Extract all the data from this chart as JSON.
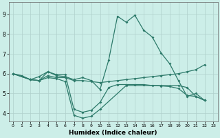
{
  "xlabel": "Humidex (Indice chaleur)",
  "background_color": "#cceee8",
  "grid_color": "#b0d0cc",
  "line_color": "#2d7a6a",
  "xlim": [
    -0.5,
    23.5
  ],
  "ylim": [
    3.6,
    9.6
  ],
  "yticks": [
    4,
    5,
    6,
    7,
    8,
    9
  ],
  "xticks": [
    0,
    1,
    2,
    3,
    4,
    5,
    6,
    7,
    8,
    9,
    10,
    11,
    12,
    13,
    14,
    15,
    16,
    17,
    18,
    19,
    20,
    21,
    22,
    23
  ],
  "series1": [
    [
      0,
      6.0
    ],
    [
      1,
      5.9
    ],
    [
      2,
      5.7
    ],
    [
      3,
      5.85
    ],
    [
      4,
      6.1
    ],
    [
      5,
      5.9
    ],
    [
      6,
      5.85
    ],
    [
      7,
      5.7
    ],
    [
      8,
      5.8
    ],
    [
      9,
      5.65
    ],
    [
      10,
      5.2
    ],
    [
      11,
      6.7
    ],
    [
      12,
      8.9
    ],
    [
      13,
      8.6
    ],
    [
      14,
      8.95
    ],
    [
      15,
      8.2
    ],
    [
      16,
      7.85
    ],
    [
      17,
      7.05
    ],
    [
      18,
      6.5
    ],
    [
      19,
      5.65
    ],
    [
      20,
      4.85
    ],
    [
      21,
      5.0
    ],
    [
      22,
      4.65
    ]
  ],
  "series2": [
    [
      0,
      6.0
    ],
    [
      2,
      5.7
    ],
    [
      3,
      5.65
    ],
    [
      4,
      5.9
    ],
    [
      5,
      5.8
    ],
    [
      6,
      5.8
    ],
    [
      7,
      5.65
    ],
    [
      8,
      5.65
    ],
    [
      9,
      5.6
    ],
    [
      10,
      5.55
    ],
    [
      11,
      5.6
    ],
    [
      12,
      5.65
    ],
    [
      13,
      5.7
    ],
    [
      14,
      5.75
    ],
    [
      15,
      5.8
    ],
    [
      16,
      5.85
    ],
    [
      17,
      5.9
    ],
    [
      18,
      5.95
    ],
    [
      19,
      6.0
    ],
    [
      20,
      6.1
    ],
    [
      21,
      6.2
    ],
    [
      22,
      6.45
    ]
  ],
  "series3": [
    [
      0,
      6.0
    ],
    [
      2,
      5.7
    ],
    [
      3,
      5.65
    ],
    [
      4,
      6.1
    ],
    [
      5,
      5.95
    ],
    [
      6,
      5.95
    ],
    [
      7,
      4.2
    ],
    [
      8,
      4.05
    ],
    [
      9,
      4.15
    ],
    [
      10,
      4.55
    ],
    [
      11,
      5.3
    ],
    [
      12,
      5.45
    ],
    [
      13,
      5.45
    ],
    [
      14,
      5.45
    ],
    [
      15,
      5.45
    ],
    [
      16,
      5.4
    ],
    [
      17,
      5.38
    ],
    [
      18,
      5.35
    ],
    [
      19,
      5.25
    ],
    [
      20,
      4.9
    ],
    [
      21,
      4.85
    ],
    [
      22,
      4.65
    ]
  ],
  "series4": [
    [
      0,
      6.0
    ],
    [
      2,
      5.7
    ],
    [
      3,
      5.65
    ],
    [
      4,
      5.8
    ],
    [
      5,
      5.75
    ],
    [
      6,
      5.6
    ],
    [
      7,
      3.9
    ],
    [
      8,
      3.75
    ],
    [
      9,
      3.85
    ],
    [
      10,
      4.2
    ],
    [
      13,
      5.4
    ],
    [
      17,
      5.4
    ],
    [
      19,
      5.4
    ],
    [
      20,
      5.3
    ],
    [
      21,
      4.85
    ],
    [
      22,
      4.65
    ]
  ]
}
